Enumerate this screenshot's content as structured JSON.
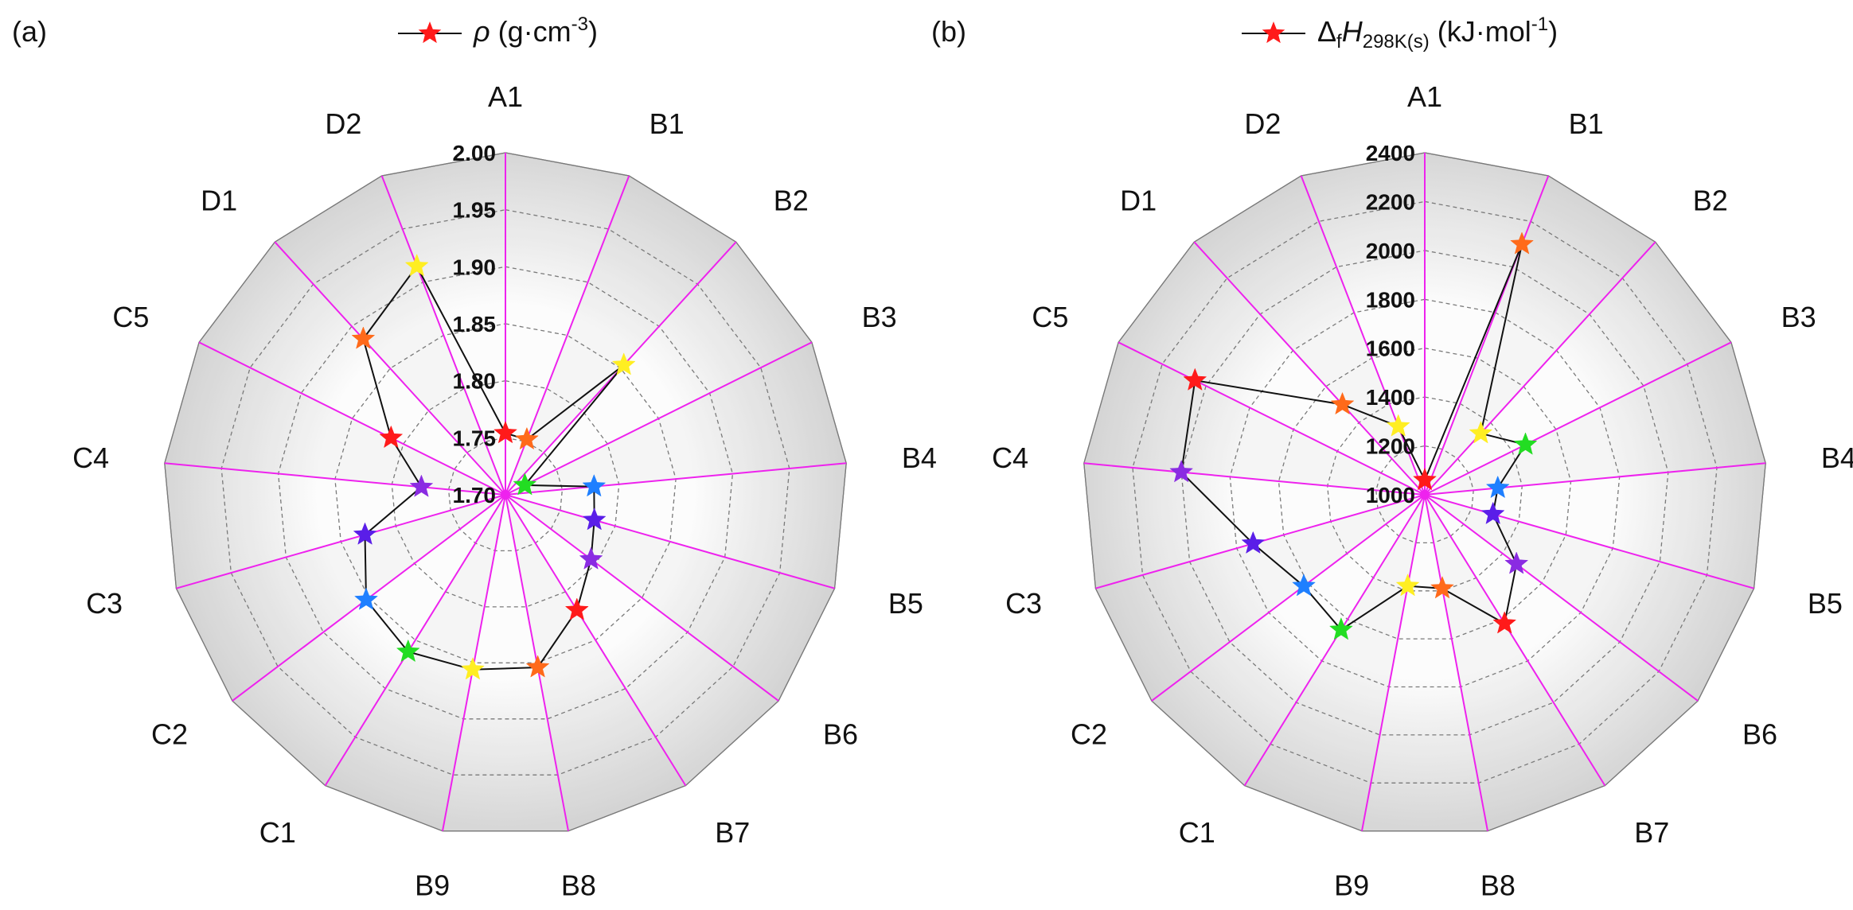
{
  "chart_data": [
    {
      "type": "radar",
      "panel_label": "(a)",
      "legend": {
        "marker": "star",
        "text": "ρ (g·cm",
        "superscript": "-3",
        "suffix": ")"
      },
      "categories": [
        "A1",
        "B1",
        "B2",
        "B3",
        "B4",
        "B5",
        "B6",
        "B7",
        "B8",
        "B9",
        "C1",
        "C2",
        "C3",
        "C4",
        "C5",
        "D1",
        "D2"
      ],
      "rmin": 1.7,
      "rmax": 2.0,
      "ticks": [
        1.7,
        1.75,
        1.8,
        1.85,
        1.9,
        1.95,
        2.0
      ],
      "tick_labels": [
        "1.70",
        "1.75",
        "1.80",
        "1.85",
        "1.90",
        "1.95",
        "2.00"
      ],
      "series": [
        {
          "name": "ρ",
          "data": [
            {
              "label": "A1",
              "value": 1.754,
              "color": "#ff1a1a"
            },
            {
              "label": "D2",
              "value": 1.915,
              "color": "#ffee22"
            },
            {
              "label": "D1",
              "value": 1.885,
              "color": "#ff6a1a"
            },
            {
              "label": "C5",
              "value": 1.812,
              "color": "#ff1a1a"
            },
            {
              "label": "C4",
              "value": 1.774,
              "color": "#8a2be2"
            },
            {
              "label": "C3",
              "value": 1.828,
              "color": "#5a1ee8"
            },
            {
              "label": "C2",
              "value": 1.853,
              "color": "#1e7fff"
            },
            {
              "label": "C1",
              "value": 1.862,
              "color": "#22dd22"
            },
            {
              "label": "B9",
              "value": 1.856,
              "color": "#ffee22"
            },
            {
              "label": "B8",
              "value": 1.854,
              "color": "#ff6a1a"
            },
            {
              "label": "B7",
              "value": 1.819,
              "color": "#ff1a1a"
            },
            {
              "label": "B6",
              "value": 1.794,
              "color": "#8a2be2"
            },
            {
              "label": "B5",
              "value": 1.781,
              "color": "#5a1ee8"
            },
            {
              "label": "B4",
              "value": 1.778,
              "color": "#1e7fff"
            },
            {
              "label": "B3",
              "value": 1.719,
              "color": "#22dd22"
            },
            {
              "label": "B2",
              "value": 1.854,
              "color": "#ffee22"
            },
            {
              "label": "B1",
              "value": 1.752,
              "color": "#ff6a1a"
            }
          ]
        }
      ]
    },
    {
      "type": "radar",
      "panel_label": "(b)",
      "legend": {
        "marker": "star",
        "text": "Δ",
        "sub1": "f",
        "mid": "H",
        "sub2": "298K(s)",
        "tail": " (kJ·mol",
        "superscript": "-1",
        "suffix": ")"
      },
      "categories": [
        "A1",
        "B1",
        "B2",
        "B3",
        "B4",
        "B5",
        "B6",
        "B7",
        "B8",
        "B9",
        "C1",
        "C2",
        "C3",
        "C4",
        "C5",
        "D1",
        "D2"
      ],
      "rmin": 1000,
      "rmax": 2400,
      "ticks": [
        1000,
        1200,
        1400,
        1600,
        1800,
        2000,
        2200,
        2400
      ],
      "tick_labels": [
        "1000",
        "1200",
        "1400",
        "1600",
        "1800",
        "2000",
        "2200",
        "2400"
      ],
      "series": [
        {
          "name": "ΔfH298K(s)",
          "data": [
            {
              "label": "A1",
              "value": 1060,
              "color": "#ff1a1a"
            },
            {
              "label": "D2",
              "value": 1300,
              "color": "#ffee22"
            },
            {
              "label": "D1",
              "value": 1500,
              "color": "#ff6a1a"
            },
            {
              "label": "C5",
              "value": 2050,
              "color": "#ff1a1a"
            },
            {
              "label": "C4",
              "value": 2000,
              "color": "#8a2be2"
            },
            {
              "label": "C3",
              "value": 1730,
              "color": "#5a1ee8"
            },
            {
              "label": "C2",
              "value": 1620,
              "color": "#1e7fff"
            },
            {
              "label": "C1",
              "value": 1650,
              "color": "#22dd22"
            },
            {
              "label": "B9",
              "value": 1380,
              "color": "#ffee22"
            },
            {
              "label": "B8",
              "value": 1390,
              "color": "#ff6a1a"
            },
            {
              "label": "B7",
              "value": 1620,
              "color": "#ff1a1a"
            },
            {
              "label": "B6",
              "value": 1470,
              "color": "#8a2be2"
            },
            {
              "label": "B5",
              "value": 1290,
              "color": "#5a1ee8"
            },
            {
              "label": "B4",
              "value": 1300,
              "color": "#1e7fff"
            },
            {
              "label": "B3",
              "value": 1460,
              "color": "#22dd22"
            },
            {
              "label": "B2",
              "value": 1340,
              "color": "#ffee22"
            },
            {
              "label": "B1",
              "value": 2100,
              "color": "#ff6a1a"
            }
          ]
        }
      ]
    }
  ]
}
